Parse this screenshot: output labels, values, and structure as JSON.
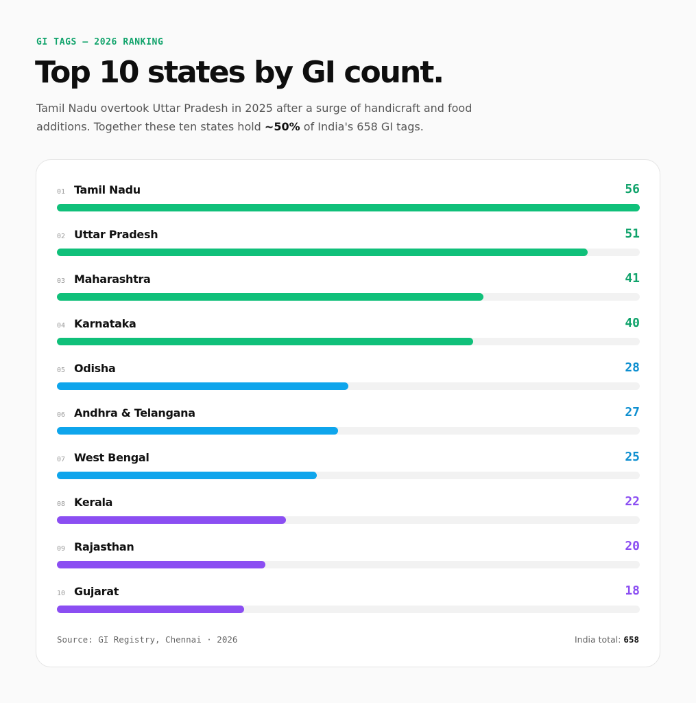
{
  "header": {
    "eyebrow": "GI TAGS — 2026 RANKING",
    "title": "Top 10 states by GI count.",
    "subtitle_before": "Tamil Nadu overtook Uttar Pradesh in 2025 after a surge of handicraft and food additions. Together these ten states hold ",
    "subtitle_bold": "~50%",
    "subtitle_after": " of India's 658 GI tags."
  },
  "chart_data": {
    "type": "bar",
    "orientation": "horizontal",
    "max_value": 56,
    "colors": {
      "green": "#10c07a",
      "blue": "#0ea5ec",
      "purple": "#8b4ef2",
      "green_text": "#10a36b",
      "blue_text": "#0e8fd0",
      "purple_text": "#8b4ef2",
      "track": "#f2f2f2"
    },
    "rows": [
      {
        "rank": "01",
        "state": "Tamil Nadu",
        "value": 56,
        "color": "green"
      },
      {
        "rank": "02",
        "state": "Uttar Pradesh",
        "value": 51,
        "color": "green"
      },
      {
        "rank": "03",
        "state": "Maharashtra",
        "value": 41,
        "color": "green"
      },
      {
        "rank": "04",
        "state": "Karnataka",
        "value": 40,
        "color": "green"
      },
      {
        "rank": "05",
        "state": "Odisha",
        "value": 28,
        "color": "blue"
      },
      {
        "rank": "06",
        "state": "Andhra & Telangana",
        "value": 27,
        "color": "blue"
      },
      {
        "rank": "07",
        "state": "West Bengal",
        "value": 25,
        "color": "blue"
      },
      {
        "rank": "08",
        "state": "Kerala",
        "value": 22,
        "color": "purple"
      },
      {
        "rank": "09",
        "state": "Rajasthan",
        "value": 20,
        "color": "purple"
      },
      {
        "rank": "10",
        "state": "Gujarat",
        "value": 18,
        "color": "purple"
      }
    ]
  },
  "footer": {
    "source": "Source: GI Registry, Chennai · 2026",
    "total_label": "India total: ",
    "total_value": "658"
  }
}
